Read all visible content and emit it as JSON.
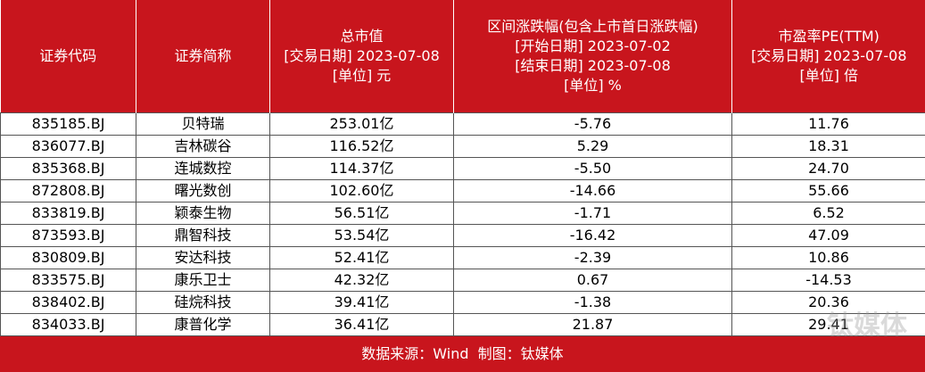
{
  "header": {
    "columns": [
      [
        "证券代码"
      ],
      [
        "证券简称"
      ],
      [
        "总市值",
        "[交易日期] 2023-07-08",
        "[单位] 元"
      ],
      [
        "区间涨跌幅(包含上市首日涨跌幅)",
        "[开始日期] 2023-07-02",
        "[结束日期] 2023-07-08",
        "[单位] %"
      ],
      [
        "市盈率PE(TTM)",
        "[交易日期] 2023-07-08",
        "[单位] 倍"
      ]
    ]
  },
  "table": {
    "rows": [
      [
        "835185.BJ",
        "贝特瑞",
        "253.01亿",
        "-5.76",
        "11.76"
      ],
      [
        "836077.BJ",
        "吉林碳谷",
        "116.52亿",
        "5.29",
        "18.31"
      ],
      [
        "835368.BJ",
        "连城数控",
        "114.37亿",
        "-5.50",
        "24.70"
      ],
      [
        "872808.BJ",
        "曙光数创",
        "102.60亿",
        "-14.66",
        "55.66"
      ],
      [
        "833819.BJ",
        "颖泰生物",
        "56.51亿",
        "-1.71",
        "6.52"
      ],
      [
        "873593.BJ",
        "鼎智科技",
        "53.54亿",
        "-16.42",
        "47.09"
      ],
      [
        "830809.BJ",
        "安达科技",
        "52.41亿",
        "-2.39",
        "10.86"
      ],
      [
        "833575.BJ",
        "康乐卫士",
        "42.32亿",
        "0.67",
        "-14.53"
      ],
      [
        "838402.BJ",
        "硅烷科技",
        "39.41亿",
        "-1.38",
        "20.36"
      ],
      [
        "834033.BJ",
        "康普化学",
        "36.41亿",
        "21.87",
        "29.41"
      ]
    ]
  },
  "footer": {
    "source": "数据来源：Wind  制图：钛媒体"
  },
  "watermark": "钛媒体"
}
